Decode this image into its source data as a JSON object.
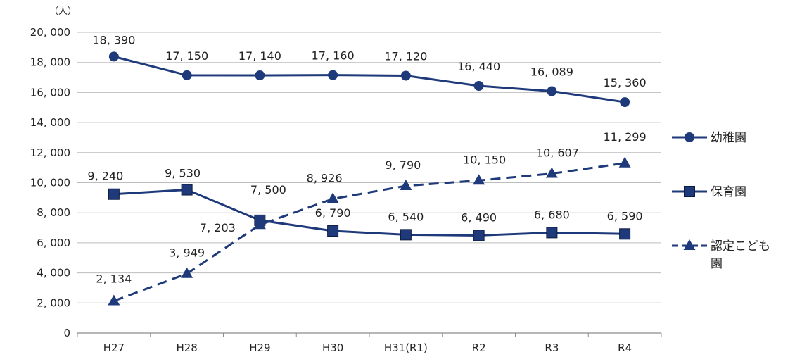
{
  "chart_data": {
    "type": "line",
    "y_unit_label": "（人）",
    "categories": [
      "H27",
      "H28",
      "H29",
      "H30",
      "H31(R1)",
      "R2",
      "R3",
      "R4"
    ],
    "ylim": [
      0,
      20000
    ],
    "yticks": [
      0,
      2000,
      4000,
      6000,
      8000,
      10000,
      12000,
      14000,
      16000,
      18000,
      20000
    ],
    "ytick_labels": [
      "0",
      "2, 000",
      "4, 000",
      "6, 000",
      "8, 000",
      "10, 000",
      "12, 000",
      "14, 000",
      "16, 000",
      "18, 000",
      "20, 000"
    ],
    "grid": true,
    "legend_position": "right",
    "series": [
      {
        "name": "幼稚園",
        "marker": "circle",
        "line_style": "solid",
        "color": "#1f3a7a",
        "values": [
          18390,
          17150,
          17140,
          17160,
          17120,
          16440,
          16089,
          15360
        ],
        "labels": [
          "18, 390",
          "17, 150",
          "17, 140",
          "17, 160",
          "17, 120",
          "16, 440",
          "16, 089",
          "15, 360"
        ]
      },
      {
        "name": "保育園",
        "marker": "square",
        "line_style": "solid",
        "color": "#1f3a7a",
        "values": [
          9240,
          9530,
          7500,
          6790,
          6540,
          6490,
          6680,
          6590
        ],
        "labels": [
          "9, 240",
          "9, 530",
          "7, 500",
          "6, 790",
          "6, 540",
          "6, 490",
          "6, 680",
          "6, 590"
        ]
      },
      {
        "name": "認定こども園",
        "marker": "triangle",
        "line_style": "dashed",
        "color": "#1f3a7a",
        "values": [
          2134,
          3949,
          7203,
          8926,
          9790,
          10150,
          10607,
          11299
        ],
        "labels": [
          "2, 134",
          "3, 949",
          "7, 203",
          "8, 926",
          "9, 790",
          "10, 150",
          "10, 607",
          "11, 299"
        ]
      }
    ]
  }
}
